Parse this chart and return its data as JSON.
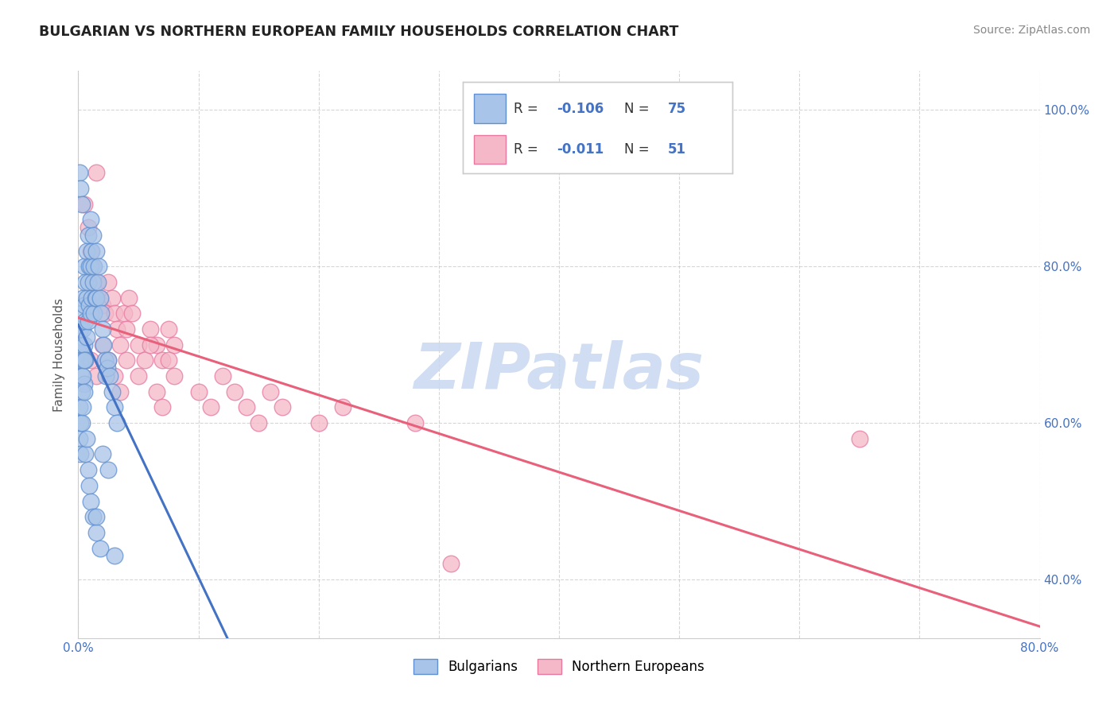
{
  "title": "BULGARIAN VS NORTHERN EUROPEAN FAMILY HOUSEHOLDS CORRELATION CHART",
  "source": "Source: ZipAtlas.com",
  "ylabel": "Family Households",
  "xlim": [
    0.0,
    0.8
  ],
  "ylim": [
    0.325,
    1.05
  ],
  "xticks": [
    0.0,
    0.1,
    0.2,
    0.3,
    0.4,
    0.5,
    0.6,
    0.7,
    0.8
  ],
  "yticks": [
    0.4,
    0.6,
    0.8,
    1.0
  ],
  "blue_R": -0.106,
  "blue_N": 75,
  "pink_R": -0.011,
  "pink_N": 51,
  "blue_color": "#a8c4e8",
  "pink_color": "#f4b8c8",
  "blue_edge_color": "#6090d0",
  "pink_edge_color": "#e878a0",
  "blue_line_color": "#4472c4",
  "pink_line_color": "#e8607a",
  "legend_label_blue": "Bulgarians",
  "legend_label_pink": "Northern Europeans",
  "watermark": "ZIPatlas",
  "watermark_color": "#c8d8f0",
  "grid_color": "#bbbbbb",
  "title_color": "#222222",
  "ytick_color": "#4472c4",
  "xtick_color": "#4472c4",
  "blue_scatter_x": [
    0.001,
    0.002,
    0.002,
    0.003,
    0.003,
    0.003,
    0.004,
    0.004,
    0.004,
    0.005,
    0.005,
    0.005,
    0.005,
    0.006,
    0.006,
    0.006,
    0.007,
    0.007,
    0.007,
    0.008,
    0.008,
    0.008,
    0.009,
    0.009,
    0.01,
    0.01,
    0.01,
    0.011,
    0.011,
    0.012,
    0.012,
    0.013,
    0.013,
    0.014,
    0.015,
    0.015,
    0.016,
    0.017,
    0.018,
    0.019,
    0.02,
    0.021,
    0.022,
    0.023,
    0.024,
    0.025,
    0.026,
    0.028,
    0.03,
    0.032,
    0.001,
    0.001,
    0.002,
    0.002,
    0.003,
    0.003,
    0.004,
    0.004,
    0.005,
    0.005,
    0.006,
    0.007,
    0.008,
    0.009,
    0.01,
    0.012,
    0.015,
    0.018,
    0.02,
    0.025,
    0.001,
    0.002,
    0.003,
    0.015,
    0.03
  ],
  "blue_scatter_y": [
    0.69,
    0.72,
    0.68,
    0.74,
    0.7,
    0.66,
    0.76,
    0.72,
    0.68,
    0.8,
    0.75,
    0.7,
    0.65,
    0.78,
    0.73,
    0.68,
    0.82,
    0.76,
    0.71,
    0.84,
    0.78,
    0.73,
    0.8,
    0.75,
    0.86,
    0.8,
    0.74,
    0.82,
    0.76,
    0.84,
    0.78,
    0.8,
    0.74,
    0.76,
    0.82,
    0.76,
    0.78,
    0.8,
    0.76,
    0.74,
    0.72,
    0.7,
    0.68,
    0.66,
    0.67,
    0.68,
    0.66,
    0.64,
    0.62,
    0.6,
    0.62,
    0.58,
    0.6,
    0.56,
    0.64,
    0.6,
    0.66,
    0.62,
    0.68,
    0.64,
    0.56,
    0.58,
    0.54,
    0.52,
    0.5,
    0.48,
    0.46,
    0.44,
    0.56,
    0.54,
    0.92,
    0.9,
    0.88,
    0.48,
    0.43
  ],
  "pink_scatter_x": [
    0.005,
    0.008,
    0.01,
    0.012,
    0.015,
    0.015,
    0.018,
    0.02,
    0.022,
    0.025,
    0.028,
    0.03,
    0.032,
    0.035,
    0.038,
    0.04,
    0.042,
    0.045,
    0.05,
    0.055,
    0.06,
    0.065,
    0.07,
    0.075,
    0.08,
    0.01,
    0.015,
    0.02,
    0.025,
    0.03,
    0.035,
    0.04,
    0.05,
    0.06,
    0.065,
    0.07,
    0.075,
    0.08,
    0.1,
    0.11,
    0.12,
    0.13,
    0.14,
    0.15,
    0.16,
    0.17,
    0.2,
    0.22,
    0.28,
    0.65,
    0.31
  ],
  "pink_scatter_y": [
    0.88,
    0.85,
    0.82,
    0.8,
    0.92,
    0.78,
    0.76,
    0.75,
    0.74,
    0.78,
    0.76,
    0.74,
    0.72,
    0.7,
    0.74,
    0.72,
    0.76,
    0.74,
    0.7,
    0.68,
    0.72,
    0.7,
    0.68,
    0.72,
    0.7,
    0.68,
    0.66,
    0.7,
    0.68,
    0.66,
    0.64,
    0.68,
    0.66,
    0.7,
    0.64,
    0.62,
    0.68,
    0.66,
    0.64,
    0.62,
    0.66,
    0.64,
    0.62,
    0.6,
    0.64,
    0.62,
    0.6,
    0.62,
    0.6,
    0.58,
    0.42
  ]
}
